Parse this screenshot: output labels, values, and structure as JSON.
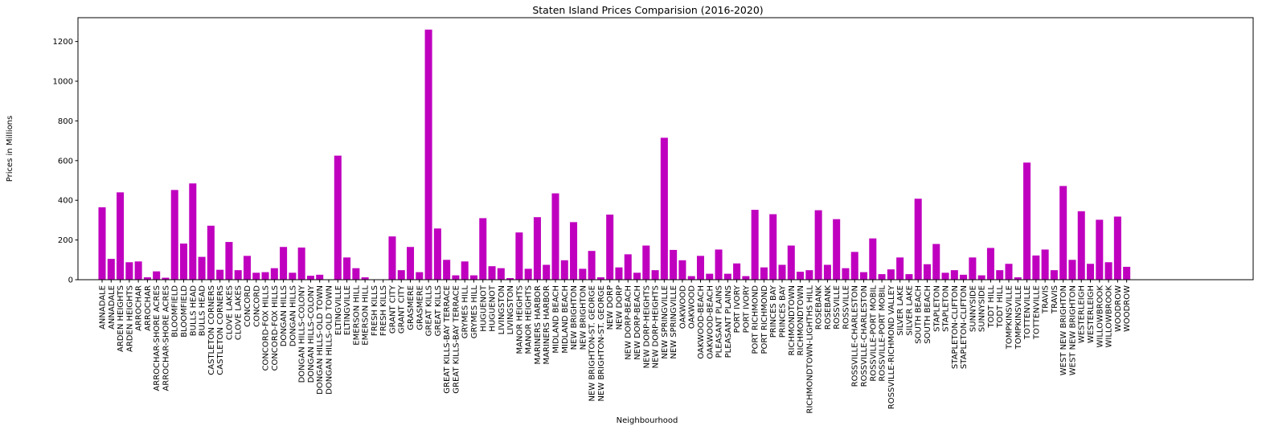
{
  "chart_data": {
    "type": "bar",
    "title": "Staten Island Prices Comparision (2016-2020)",
    "xlabel": "Neighbourhood",
    "ylabel": "Prices in Millions",
    "ylim": [
      0,
      1320
    ],
    "yticks": [
      0,
      200,
      400,
      600,
      800,
      1000,
      1200
    ],
    "bar_color": "#bf00bf",
    "grid": false,
    "categories": [
      "ANNADALE",
      "ANNADALE",
      "ARDEN HEIGHTS",
      "ARDEN HEIGHTS",
      "ARROCHAR",
      "ARROCHAR",
      "ARROCHAR-SHORE ACRES",
      "ARROCHAR-SHORE ACRES",
      "BLOOMFIELD",
      "BLOOMFIELD",
      "BULLS HEAD",
      "BULLS HEAD",
      "CASTLETON CORNERS",
      "CASTLETON CORNERS",
      "CLOVE LAKES",
      "CLOVE LAKES",
      "CONCORD",
      "CONCORD",
      "CONCORD-FOX HILLS",
      "CONCORD-FOX HILLS",
      "DONGAN HILLS",
      "DONGAN HILLS",
      "DONGAN HILLS-COLONY",
      "DONGAN HILLS-COLONY",
      "DONGAN HILLS-OLD TOWN",
      "DONGAN HILLS-OLD TOWN",
      "ELTINGVILLE",
      "ELTINGVILLE",
      "EMERSON HILL",
      "EMERSON HILL",
      "FRESH KILLS",
      "FRESH KILLS",
      "GRANT CITY",
      "GRANT CITY",
      "GRASMERE",
      "GRASMERE",
      "GREAT KILLS",
      "GREAT KILLS",
      "GREAT KILLS-BAY TERRACE",
      "GREAT KILLS-BAY TERRACE",
      "GRYMES HILL",
      "GRYMES HILL",
      "HUGUENOT",
      "HUGUENOT",
      "LIVINGSTON",
      "LIVINGSTON",
      "MANOR HEIGHTS",
      "MANOR HEIGHTS",
      "MARINERS HARBOR",
      "MARINERS HARBOR",
      "MIDLAND BEACH",
      "MIDLAND BEACH",
      "NEW BRIGHTON",
      "NEW BRIGHTON",
      "NEW BRIGHTON-ST. GEORGE",
      "NEW BRIGHTON-ST. GEORGE",
      "NEW DORP",
      "NEW DORP",
      "NEW DORP-BEACH",
      "NEW DORP-BEACH",
      "NEW DORP-HEIGHTS",
      "NEW DORP-HEIGHTS",
      "NEW SPRINGVILLE",
      "NEW SPRINGVILLE",
      "OAKWOOD",
      "OAKWOOD",
      "OAKWOOD-BEACH",
      "OAKWOOD-BEACH",
      "PLEASANT PLAINS",
      "PLEASANT PLAINS",
      "PORT IVORY",
      "PORT IVORY",
      "PORT RICHMOND",
      "PORT RICHMOND",
      "PRINCES BAY",
      "PRINCES BAY",
      "RICHMONDTOWN",
      "RICHMONDTOWN",
      "RICHMONDTOWN-LIGHTHS HILL",
      "ROSEBANK",
      "ROSEBANK",
      "ROSSVILLE",
      "ROSSVILLE",
      "ROSSVILLE-CHARLESTON",
      "ROSSVILLE-CHARLESTON",
      "ROSSVILLE-PORT MOBIL",
      "ROSSVILLE-PORT MOBIL",
      "ROSSVILLE-RICHMOND VALLEY",
      "SILVER LAKE",
      "SILVER LAKE",
      "SOUTH BEACH",
      "SOUTH BEACH",
      "STAPLETON",
      "STAPLETON",
      "STAPLETON-CLIFTON",
      "STAPLETON-CLIFTON",
      "SUNNYSIDE",
      "SUNNYSIDE",
      "TODT HILL",
      "TODT HILL",
      "TOMPKINSVILLE",
      "TOMPKINSVILLE",
      "TOTTENVILLE",
      "TOTTENVILLE",
      "TRAVIS",
      "TRAVIS",
      "WEST NEW BRIGHTON",
      "WEST NEW BRIGHTON",
      "WESTERLEIGH",
      "WESTERLEIGH",
      "WILLOWBROOK",
      "WILLOWBROOK",
      "WOODROW",
      "WOODROW"
    ],
    "values": [
      365,
      105,
      440,
      88,
      92,
      12,
      42,
      10,
      452,
      182,
      485,
      115,
      272,
      50,
      190,
      48,
      120,
      35,
      38,
      58,
      165,
      35,
      162,
      20,
      25,
      0,
      625,
      112,
      58,
      12,
      0,
      0,
      218,
      48,
      165,
      38,
      1260,
      258,
      100,
      22,
      92,
      22,
      310,
      68,
      58,
      8,
      238,
      55,
      315,
      75,
      435,
      98,
      290,
      55,
      145,
      12,
      328,
      62,
      128,
      35,
      172,
      48,
      715,
      150,
      98,
      18,
      120,
      30,
      152,
      30,
      82,
      18,
      352,
      62,
      330,
      75,
      172,
      40,
      48,
      350,
      75,
      305,
      58,
      140,
      38,
      208,
      28,
      52,
      112,
      28,
      408,
      78,
      180,
      35,
      48,
      25,
      112,
      22,
      160,
      48,
      80,
      12,
      590,
      122,
      152,
      48,
      472,
      100,
      345,
      80,
      302,
      88,
      318,
      65
    ]
  }
}
